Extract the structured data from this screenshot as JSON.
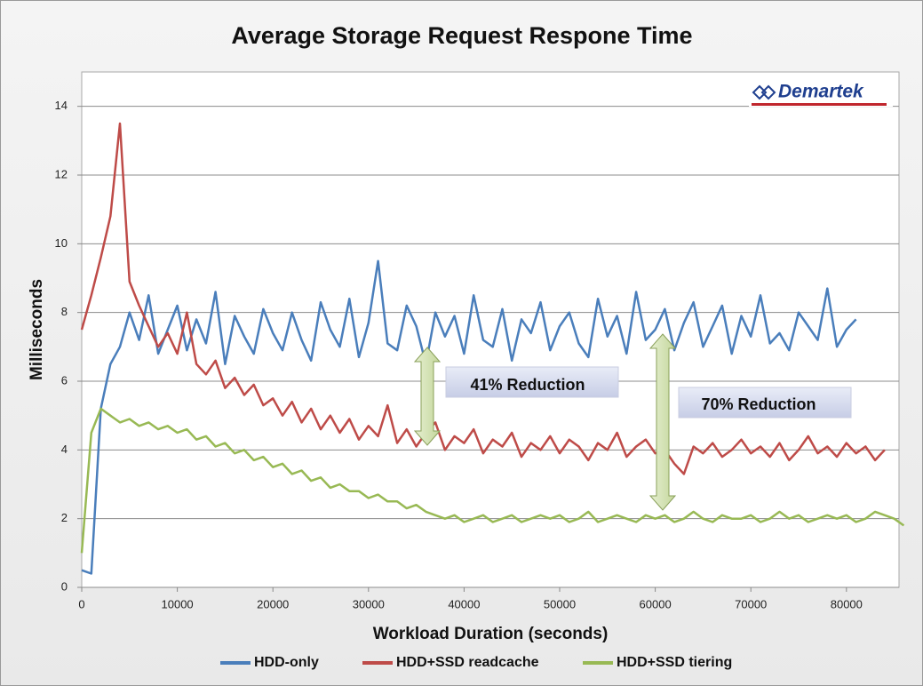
{
  "chart_data": {
    "type": "line",
    "title": "Average Storage Request Respone Time",
    "xlabel": "Workload Duration (seconds)",
    "ylabel": "Milliseconds",
    "logo": "Demartek",
    "annotations": [
      "41% Reduction",
      "70% Reduction"
    ],
    "xlim": [
      0,
      85500
    ],
    "ylim": [
      0,
      15
    ],
    "xticks": [
      0,
      10000,
      20000,
      30000,
      40000,
      50000,
      60000,
      70000,
      80000
    ],
    "yticks": [
      0,
      2,
      4,
      6,
      8,
      10,
      12,
      14
    ],
    "grid": true,
    "legend": "bottom",
    "x": [
      0,
      1000,
      2000,
      3000,
      4000,
      5000,
      6000,
      7000,
      8000,
      9000,
      10000,
      11000,
      12000,
      13000,
      14000,
      15000,
      16000,
      17000,
      18000,
      19000,
      20000,
      21000,
      22000,
      23000,
      24000,
      25000,
      26000,
      27000,
      28000,
      29000,
      30000,
      31000,
      32000,
      33000,
      34000,
      35000,
      36000,
      37000,
      38000,
      39000,
      40000,
      41000,
      42000,
      43000,
      44000,
      45000,
      46000,
      47000,
      48000,
      49000,
      50000,
      51000,
      52000,
      53000,
      54000,
      55000,
      56000,
      57000,
      58000,
      59000,
      60000,
      61000,
      62000,
      63000,
      64000,
      65000,
      66000,
      67000,
      68000,
      69000,
      70000,
      71000,
      72000,
      73000,
      74000,
      75000,
      76000,
      77000,
      78000,
      79000,
      80000,
      81000,
      82000,
      83000,
      84000,
      85000,
      86000
    ],
    "series": [
      {
        "name": "HDD-only",
        "color": "#4a7ebb",
        "values": [
          0.5,
          0.4,
          5.2,
          6.5,
          7.0,
          8.0,
          7.2,
          8.5,
          6.8,
          7.5,
          8.2,
          6.9,
          7.8,
          7.1,
          8.6,
          6.5,
          7.9,
          7.3,
          6.8,
          8.1,
          7.4,
          6.9,
          8.0,
          7.2,
          6.6,
          8.3,
          7.5,
          7.0,
          8.4,
          6.7,
          7.7,
          9.5,
          7.1,
          6.9,
          8.2,
          7.6,
          6.5,
          8.0,
          7.3,
          7.9,
          6.8,
          8.5,
          7.2,
          7.0,
          8.1,
          6.6,
          7.8,
          7.4,
          8.3,
          6.9,
          7.6,
          8.0,
          7.1,
          6.7,
          8.4,
          7.3,
          7.9,
          6.8,
          8.6,
          7.2,
          7.5,
          8.1,
          6.9,
          7.7,
          8.3,
          7.0,
          7.6,
          8.2,
          6.8,
          7.9,
          7.3,
          8.5,
          7.1,
          7.4,
          6.9,
          8.0,
          7.6,
          7.2,
          8.7,
          7.0,
          7.5,
          7.8,
          null,
          null,
          null,
          null,
          null
        ]
      },
      {
        "name": "HDD+SSD readcache",
        "color": "#be4b48",
        "values": [
          7.5,
          8.5,
          9.6,
          10.8,
          13.5,
          8.9,
          8.2,
          7.6,
          7.0,
          7.4,
          6.8,
          8.0,
          6.5,
          6.2,
          6.6,
          5.8,
          6.1,
          5.6,
          5.9,
          5.3,
          5.5,
          5.0,
          5.4,
          4.8,
          5.2,
          4.6,
          5.0,
          4.5,
          4.9,
          4.3,
          4.7,
          4.4,
          5.3,
          4.2,
          4.6,
          4.1,
          4.5,
          4.8,
          4.0,
          4.4,
          4.2,
          4.6,
          3.9,
          4.3,
          4.1,
          4.5,
          3.8,
          4.2,
          4.0,
          4.4,
          3.9,
          4.3,
          4.1,
          3.7,
          4.2,
          4.0,
          4.5,
          3.8,
          4.1,
          4.3,
          3.9,
          4.0,
          3.6,
          3.3,
          4.1,
          3.9,
          4.2,
          3.8,
          4.0,
          4.3,
          3.9,
          4.1,
          3.8,
          4.2,
          3.7,
          4.0,
          4.4,
          3.9,
          4.1,
          3.8,
          4.2,
          3.9,
          4.1,
          3.7,
          4.0,
          null,
          null
        ]
      },
      {
        "name": "HDD+SSD tiering",
        "color": "#98b954",
        "values": [
          1.0,
          4.5,
          5.2,
          5.0,
          4.8,
          4.9,
          4.7,
          4.8,
          4.6,
          4.7,
          4.5,
          4.6,
          4.3,
          4.4,
          4.1,
          4.2,
          3.9,
          4.0,
          3.7,
          3.8,
          3.5,
          3.6,
          3.3,
          3.4,
          3.1,
          3.2,
          2.9,
          3.0,
          2.8,
          2.8,
          2.6,
          2.7,
          2.5,
          2.5,
          2.3,
          2.4,
          2.2,
          2.1,
          2.0,
          2.1,
          1.9,
          2.0,
          2.1,
          1.9,
          2.0,
          2.1,
          1.9,
          2.0,
          2.1,
          2.0,
          2.1,
          1.9,
          2.0,
          2.2,
          1.9,
          2.0,
          2.1,
          2.0,
          1.9,
          2.1,
          2.0,
          2.1,
          1.9,
          2.0,
          2.2,
          2.0,
          1.9,
          2.1,
          2.0,
          2.0,
          2.1,
          1.9,
          2.0,
          2.2,
          2.0,
          2.1,
          1.9,
          2.0,
          2.1,
          2.0,
          2.1,
          1.9,
          2.0,
          2.2,
          2.1,
          2.0,
          1.8
        ]
      }
    ]
  }
}
